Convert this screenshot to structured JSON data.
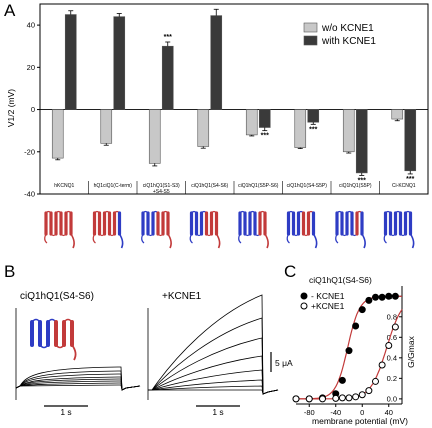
{
  "panels": {
    "a": "A",
    "b": "B",
    "c": "C"
  },
  "chart_data": [
    {
      "type": "bar",
      "panel": "A",
      "ylabel": "V1/2 (mV)",
      "ylim": [
        -40,
        50
      ],
      "yticks": [
        -40,
        -20,
        0,
        20,
        40
      ],
      "categories": [
        "hKCNQ1",
        "hQ1ciQ1(C-term)",
        "ciQ1hQ1(S1-S3)",
        "ciQ1hQ1(S4-S6)",
        "ciQ1hQ1(S5P-S6)",
        "ciQ1hQ1(S4-S5P)",
        "ciQ1hQ1(S5P)",
        "Ci-KCNQ1"
      ],
      "category_lines": [
        [
          "hKCNQ1"
        ],
        [
          "hQ1ciQ1(C-term)"
        ],
        [
          "ciQ1hQ1(S1-S3)",
          "+S4-S5"
        ],
        [
          "ciQ1hQ1(S4-S6)"
        ],
        [
          "ciQ1hQ1(S5P-S6)"
        ],
        [
          "ciQ1hQ1(S4-S5P)"
        ],
        [
          "ciQ1hQ1(S5P)"
        ],
        [
          "Ci-KCNQ1"
        ]
      ],
      "series": [
        {
          "name": "w/o KCNE1",
          "color": "#c8c8c8",
          "values": [
            -23,
            -16,
            -25.5,
            -17.5,
            -12,
            -18,
            -20,
            -4.5
          ],
          "errors": [
            0.8,
            0.9,
            1.2,
            0.8,
            0.5,
            0.5,
            0.6,
            0.8
          ]
        },
        {
          "name": "with KCNE1",
          "color": "#3a3a3a",
          "values": [
            45,
            44,
            30,
            44.5,
            -8.5,
            -6,
            -30,
            -29
          ],
          "errors": [
            1.8,
            1.5,
            2,
            3,
            1.5,
            1,
            1.2,
            1.5
          ]
        }
      ],
      "significance": [
        {
          "category": "ciQ1hQ1(S1-S3)",
          "label": "***"
        },
        {
          "category": "ciQ1hQ1(S5P-S6)",
          "label": "***"
        },
        {
          "category": "ciQ1hQ1(S4-S5P)",
          "label": "***"
        },
        {
          "category": "ciQ1hQ1(S5P)",
          "label": "***"
        },
        {
          "category": "Ci-KCNQ1",
          "label": "***"
        }
      ],
      "legend": "top-right"
    },
    {
      "type": "line",
      "panel": "B",
      "traces": [
        {
          "label": "ciQ1hQ1(S4-S6)",
          "scale_time": "1 s"
        },
        {
          "label": "+KCNE1",
          "scale_time": "1 s",
          "scale_current": "5 μA"
        }
      ]
    },
    {
      "type": "scatter",
      "panel": "C",
      "title": "ciQ1hQ1(S4-S6)",
      "xlabel": "membrane potential (mV)",
      "ylabel": "G/Gmax",
      "xlim": [
        -100,
        60
      ],
      "ylim": [
        -0.05,
        1.1
      ],
      "xticks": [
        -80,
        -40,
        0,
        40
      ],
      "yticks": [
        0,
        0.2,
        0.4,
        0.6,
        0.8,
        1.0
      ],
      "legend": "top-left",
      "series": [
        {
          "name": "- KCNE1",
          "marker": "filled",
          "x": [
            -100,
            -80,
            -60,
            -40,
            -30,
            -20,
            -10,
            0,
            10,
            20,
            30,
            40,
            50
          ],
          "y": [
            0,
            0,
            0.01,
            0.05,
            0.18,
            0.47,
            0.71,
            0.87,
            0.96,
            0.99,
            0.99,
            1.0,
            1.0
          ]
        },
        {
          "name": "+KCNE1",
          "marker": "open",
          "x": [
            -100,
            -80,
            -60,
            -40,
            -30,
            -20,
            -10,
            0,
            10,
            20,
            30,
            40,
            50
          ],
          "y": [
            0,
            0,
            0,
            0.005,
            0.01,
            0.01,
            0.02,
            0.04,
            0.08,
            0.17,
            0.33,
            0.52,
            0.7
          ]
        }
      ]
    }
  ]
}
